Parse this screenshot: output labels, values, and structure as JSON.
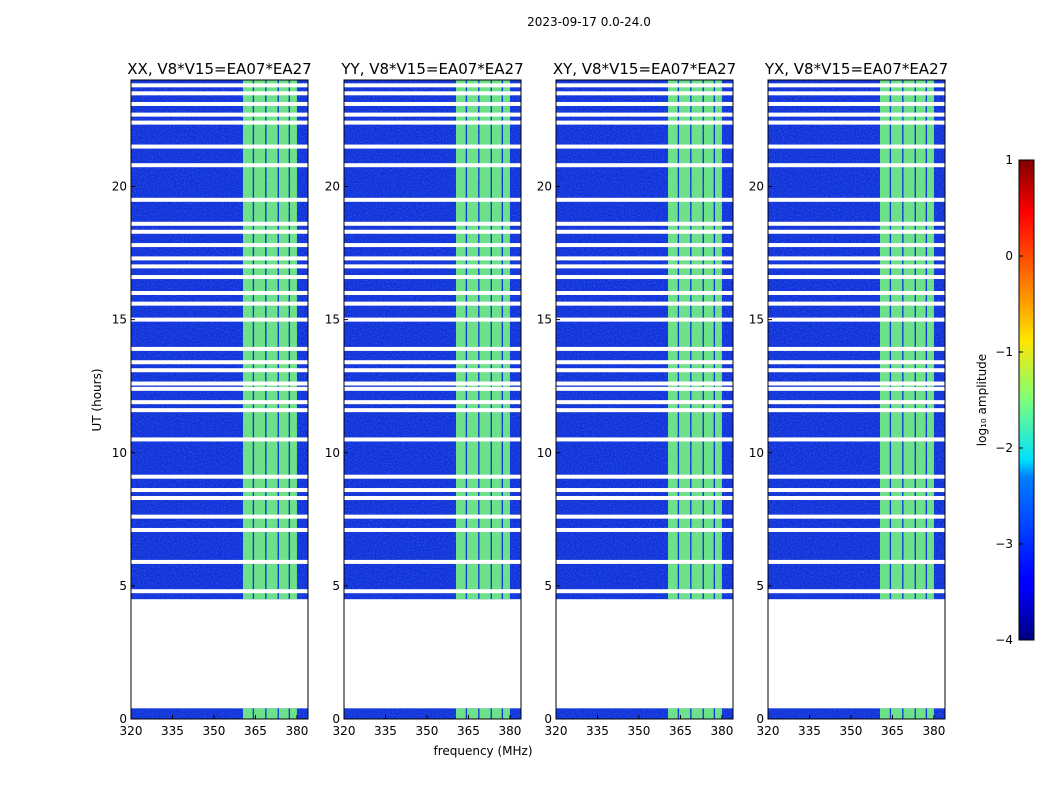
{
  "figure": {
    "suptitle": "2023-09-17 0.0-24.0"
  },
  "chart_data": {
    "type": "heatmap",
    "xlabel": "frequency (MHz)",
    "ylabel": "UT (hours)",
    "xlim": [
      320,
      384
    ],
    "ylim": [
      0,
      24
    ],
    "xticks": [
      320,
      335,
      350,
      365,
      380
    ],
    "yticks": [
      0,
      5,
      10,
      15,
      20
    ],
    "panels": [
      {
        "title": "XX, V8*V15=EA07*EA27",
        "polarization": "XX"
      },
      {
        "title": "YY, V8*V15=EA07*EA27",
        "polarization": "YY"
      },
      {
        "title": "XY, V8*V15=EA07*EA27",
        "polarization": "XY"
      },
      {
        "title": "YX, V8*V15=EA07*EA27",
        "polarization": "YX"
      }
    ],
    "data_coverage_hours": [
      [
        0.0,
        0.4
      ],
      [
        4.5,
        24.0
      ]
    ],
    "empty_hours": [
      [
        0.4,
        4.5
      ]
    ],
    "bright_band_mhz": [
      360.5,
      380
    ],
    "bright_subbands_mhz": [
      [
        360.5,
        364
      ],
      [
        364.5,
        368.5
      ],
      [
        369,
        373
      ],
      [
        373.5,
        377
      ],
      [
        377.5,
        380
      ]
    ],
    "flagged_rows_hours": [
      4.8,
      5.9,
      7.1,
      7.6,
      8.3,
      8.6,
      9.1,
      10.5,
      11.6,
      11.9,
      12.4,
      12.6,
      13.1,
      13.4,
      13.9,
      15.0,
      15.6,
      16.0,
      16.6,
      17.0,
      17.3,
      17.8,
      18.3,
      18.6,
      19.5,
      20.8,
      21.5,
      22.4,
      22.7,
      23.1,
      23.5,
      23.8
    ],
    "colorbar": {
      "label": "log₁₀ amplitude",
      "range": [
        -4,
        1
      ],
      "ticks": [
        1,
        0,
        -1,
        -2,
        -3,
        -4
      ],
      "tick_labels": [
        "1",
        "0",
        "−1",
        "−2",
        "−3",
        "−4"
      ],
      "colormap": "jet"
    }
  }
}
